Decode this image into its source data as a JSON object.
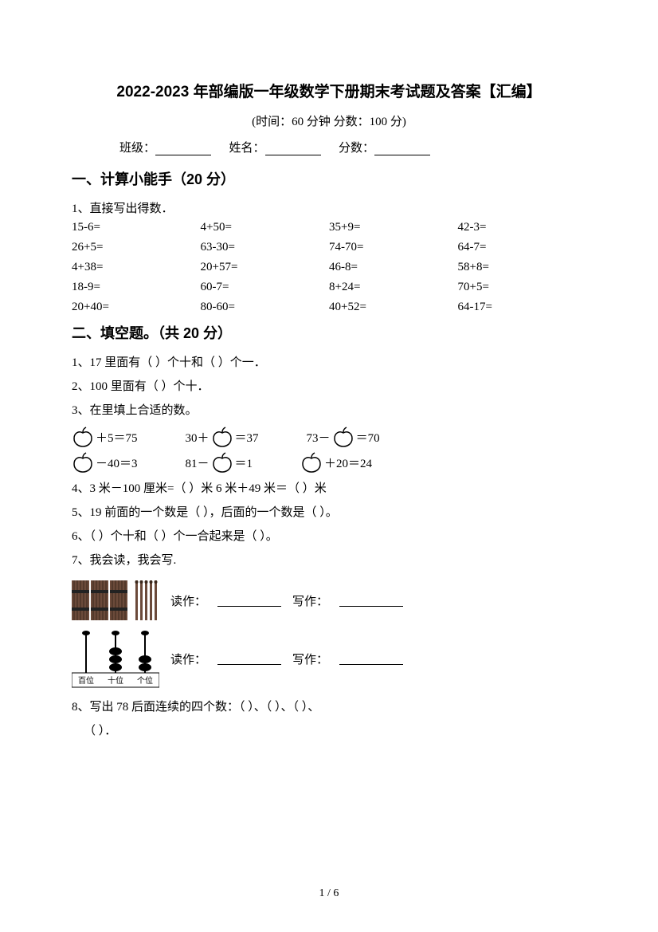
{
  "title": "2022-2023 年部编版一年级数学下册期末考试题及答案【汇编】",
  "subtitle": "(时间：60 分钟   分数：100 分)",
  "info": {
    "class_label": "班级：",
    "name_label": "姓名：",
    "score_label": "分数："
  },
  "section1": {
    "header": "一、计算小能手（20 分）",
    "q1": "1、直接写出得数．",
    "grid": [
      [
        "15-6=",
        "4+50=",
        "35+9=",
        "42-3="
      ],
      [
        "26+5=",
        "63-30=",
        "74-70=",
        "64-7="
      ],
      [
        "4+38=",
        "20+57=",
        "46-8=",
        "58+8="
      ],
      [
        "18-9=",
        "60-7=",
        "8+24=",
        "70+5="
      ],
      [
        "20+40=",
        "80-60=",
        "40+52=",
        "64-17="
      ]
    ]
  },
  "section2": {
    "header": "二、填空题。（共 20 分）",
    "q1": "1、17 里面有（       ）个十和（       ）个一．",
    "q2": "2、100 里面有（       ）个十．",
    "q3": "3、在里填上合适的数。",
    "apple_row1": [
      {
        "pre": "",
        "apple": true,
        "mid": "＋5＝75"
      },
      {
        "pre": "30＋",
        "apple": true,
        "mid": "＝37"
      },
      {
        "pre": "73－",
        "apple": true,
        "mid": "＝70"
      }
    ],
    "apple_row2": [
      {
        "pre": "",
        "apple": true,
        "mid": "－40＝3"
      },
      {
        "pre": "81－",
        "apple": true,
        "mid": "＝1"
      },
      {
        "pre": "",
        "apple": true,
        "mid": "＋20＝24"
      }
    ],
    "q4": "4、3 米－100 厘米=（        ）米       6 米＋49 米＝（        ）米",
    "q5": "5、19 前面的一个数是（        ），后面的一个数是（        ）。",
    "q6": "6、（        ）个十和（        ）个一合起来是（        ）。",
    "q7": "7、我会读，我会写.",
    "q7_read": "读作：",
    "q7_write": "写作：",
    "abacus_labels": [
      "百位",
      "十位",
      "个位"
    ],
    "q8": "8、写出 78 后面连续的四个数：（        ）、（        ）、（        ）、",
    "q8b": "（        ）．"
  },
  "pagenum": "1 / 6",
  "colors": {
    "stick_bundle": "#6b4a3a",
    "stick_dark": "#5a3d2f",
    "stick_band": "#333333"
  }
}
